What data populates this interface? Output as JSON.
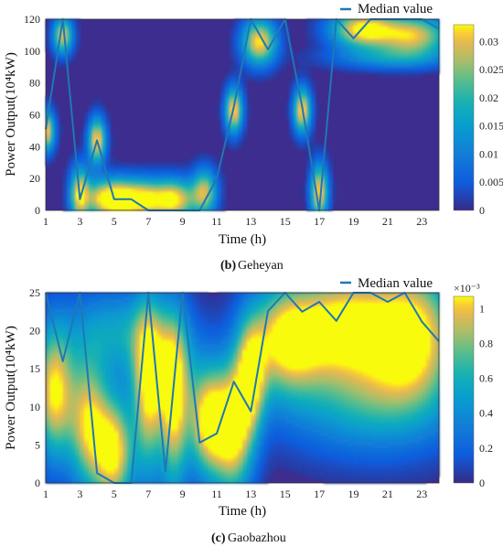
{
  "chart_data": [
    {
      "type": "heatmap",
      "panel_label": "(b)",
      "caption": "Geheyan",
      "xlabel": "Time (h)",
      "ylabel": "Power Output(10⁴kW)",
      "xlim": [
        1,
        24
      ],
      "ylim": [
        0,
        120
      ],
      "x_ticks": [
        1,
        3,
        5,
        7,
        9,
        11,
        13,
        15,
        17,
        19,
        21,
        23
      ],
      "y_ticks": [
        0,
        20,
        40,
        60,
        80,
        100,
        120
      ],
      "colorbar": {
        "range": [
          0,
          0.033
        ],
        "ticks": [
          "0",
          "0.005",
          "0.01",
          "0.015",
          "0.02",
          "0.025",
          "0.03"
        ],
        "multiplier": ""
      },
      "legend": "Median value",
      "legend_position": "top-right",
      "series": [
        {
          "name": "Median value",
          "color": "#1e78b4",
          "x": [
            1,
            2,
            3,
            4,
            5,
            6,
            7,
            8,
            9,
            10,
            11,
            12,
            13,
            14,
            15,
            16,
            17,
            18,
            19,
            20,
            21,
            22,
            23,
            24
          ],
          "values": [
            51,
            120,
            7,
            44,
            7,
            7,
            0,
            0,
            0,
            0,
            20,
            65,
            120,
            101,
            120,
            65,
            0,
            120,
            108,
            120,
            120,
            120,
            120,
            114
          ]
        }
      ],
      "density_blobs": [
        {
          "x": 1,
          "y": 50,
          "sx": 0.35,
          "sy": 9,
          "w": 1.0
        },
        {
          "x": 2,
          "y": 110,
          "sx": 0.4,
          "sy": 8,
          "w": 0.9
        },
        {
          "x": 3,
          "y": 10,
          "sx": 0.4,
          "sy": 12,
          "w": 1.0
        },
        {
          "x": 4,
          "y": 44,
          "sx": 0.35,
          "sy": 10,
          "w": 1.0
        },
        {
          "x": 4,
          "y": 8,
          "sx": 0.5,
          "sy": 8,
          "w": 0.5
        },
        {
          "x": 5,
          "y": 7,
          "sx": 0.7,
          "sy": 9,
          "w": 1.0
        },
        {
          "x": 6.5,
          "y": 7,
          "sx": 0.9,
          "sy": 9,
          "w": 1.0
        },
        {
          "x": 8.5,
          "y": 7,
          "sx": 0.9,
          "sy": 9,
          "w": 1.0
        },
        {
          "x": 10.3,
          "y": 12,
          "sx": 0.5,
          "sy": 10,
          "w": 0.8
        },
        {
          "x": 12,
          "y": 63,
          "sx": 0.35,
          "sy": 10,
          "w": 1.0
        },
        {
          "x": 13.5,
          "y": 106,
          "sx": 0.7,
          "sy": 10,
          "w": 1.0
        },
        {
          "x": 16,
          "y": 63,
          "sx": 0.35,
          "sy": 10,
          "w": 1.0
        },
        {
          "x": 17,
          "y": 12,
          "sx": 0.35,
          "sy": 12,
          "w": 1.0
        },
        {
          "x": 19.5,
          "y": 114,
          "sx": 1.3,
          "sy": 8,
          "w": 1.0
        },
        {
          "x": 22.5,
          "y": 110,
          "sx": 1.5,
          "sy": 9,
          "w": 0.9
        },
        {
          "x": 21,
          "y": 96,
          "sx": 2.5,
          "sy": 5,
          "w": 0.35
        }
      ]
    },
    {
      "type": "heatmap",
      "panel_label": "(c)",
      "caption": "Gaobazhou",
      "xlabel": "Time (h)",
      "ylabel": "Power Output(10⁴kW)",
      "xlim": [
        1,
        24
      ],
      "ylim": [
        0,
        25
      ],
      "x_ticks": [
        1,
        3,
        5,
        7,
        9,
        11,
        13,
        15,
        17,
        19,
        21,
        23
      ],
      "y_ticks": [
        0,
        5,
        10,
        15,
        20,
        25
      ],
      "colorbar": {
        "range": [
          0,
          0.00107
        ],
        "ticks": [
          "0",
          "0.2",
          "0.4",
          "0.6",
          "0.8",
          "1"
        ],
        "multiplier": "×10⁻³"
      },
      "legend": "Median value",
      "legend_position": "top-right",
      "series": [
        {
          "name": "Median value",
          "color": "#1e78b4",
          "x": [
            1,
            2,
            3,
            4,
            5,
            6,
            7,
            8,
            9,
            10,
            11,
            12,
            13,
            14,
            15,
            16,
            17,
            18,
            19,
            20,
            21,
            22,
            23,
            24
          ],
          "values": [
            25,
            16,
            25,
            1.3,
            0,
            0,
            25,
            1.5,
            25,
            5.3,
            6.5,
            13.3,
            9.4,
            22.6,
            25,
            22.5,
            23.8,
            21.3,
            25,
            25,
            23.8,
            25,
            21.2,
            18.6
          ]
        }
      ],
      "density_blobs": [
        {
          "x": 1.5,
          "y": 12,
          "sx": 0.8,
          "sy": 6,
          "w": 1.0
        },
        {
          "x": 3.5,
          "y": 8,
          "sx": 0.8,
          "sy": 6,
          "w": 0.9
        },
        {
          "x": 5,
          "y": 4,
          "sx": 0.8,
          "sy": 5,
          "w": 1.0
        },
        {
          "x": 7,
          "y": 12,
          "sx": 0.6,
          "sy": 8,
          "w": 0.85
        },
        {
          "x": 8.5,
          "y": 10,
          "sx": 0.6,
          "sy": 8,
          "w": 0.9
        },
        {
          "x": 10.5,
          "y": 8,
          "sx": 0.8,
          "sy": 5,
          "w": 1.0
        },
        {
          "x": 12,
          "y": 7,
          "sx": 0.8,
          "sy": 6,
          "w": 1.0
        },
        {
          "x": 13,
          "y": 14,
          "sx": 0.6,
          "sy": 5,
          "w": 0.8
        },
        {
          "x": 15,
          "y": 19,
          "sx": 1.5,
          "sy": 5,
          "w": 0.95
        },
        {
          "x": 18.5,
          "y": 21,
          "sx": 2.0,
          "sy": 5,
          "w": 1.0
        },
        {
          "x": 22.5,
          "y": 20,
          "sx": 1.8,
          "sy": 6,
          "w": 1.0
        },
        {
          "x": 20,
          "y": 11,
          "sx": 3.5,
          "sy": 5,
          "w": 0.55
        },
        {
          "x": 5,
          "y": 20,
          "sx": 2.0,
          "sy": 4,
          "w": 0.45
        },
        {
          "x": 8,
          "y": 16,
          "sx": 1.5,
          "sy": 5,
          "w": 0.4
        }
      ]
    }
  ]
}
